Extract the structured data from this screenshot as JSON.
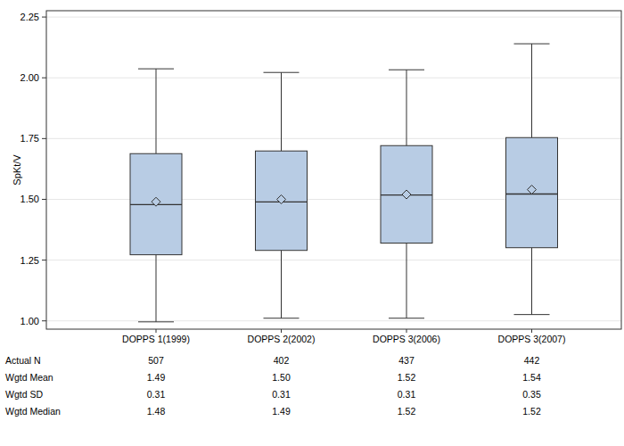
{
  "chart_data": {
    "type": "box",
    "y_label": "SpKt/V",
    "categories": [
      "DOPPS 1(1999)",
      "DOPPS 2(2002)",
      "DOPPS 3(2006)",
      "DOPPS 3(2007)"
    ],
    "boxes": [
      {
        "whisker_low": 0.996,
        "q1": 1.272,
        "median": 1.478,
        "q3": 1.688,
        "whisker_high": 2.037,
        "mean": 1.49
      },
      {
        "whisker_low": 1.011,
        "q1": 1.29,
        "median": 1.489,
        "q3": 1.699,
        "whisker_high": 2.022,
        "mean": 1.5
      },
      {
        "whisker_low": 1.011,
        "q1": 1.32,
        "median": 1.518,
        "q3": 1.721,
        "whisker_high": 2.033,
        "mean": 1.52
      },
      {
        "whisker_low": 1.026,
        "q1": 1.301,
        "median": 1.522,
        "q3": 1.754,
        "whisker_high": 2.14,
        "mean": 1.54
      }
    ],
    "color": "#b8cce4",
    "ylim": [
      0.966,
      2.276
    ],
    "yticks": [
      {
        "value": 1,
        "label": "1.00"
      },
      {
        "value": 1.25,
        "label": "1.25"
      },
      {
        "value": 1.5,
        "label": "1.50"
      },
      {
        "value": 1.75,
        "label": "1.75"
      },
      {
        "value": 2,
        "label": "2.00"
      },
      {
        "value": 2.25,
        "label": "2.25"
      }
    ],
    "grid": true,
    "table": [
      {
        "label": "Actual N",
        "values": [
          507,
          402,
          437,
          442
        ]
      },
      {
        "label": "Wgtd Mean",
        "values": [
          1.49,
          1.5,
          1.52,
          1.54
        ],
        "value_labels": [
          "1.49",
          "1.50",
          "1.52",
          "1.54"
        ]
      },
      {
        "label": "Wgtd SD",
        "values": [
          0.31,
          0.31,
          0.31,
          0.35
        ],
        "value_labels": [
          "0.31",
          "0.31",
          "0.31",
          "0.35"
        ]
      },
      {
        "label": "Wgtd Median",
        "values": [
          1.48,
          1.49,
          1.52,
          1.52
        ],
        "value_labels": [
          "1.48",
          "1.49",
          "1.52",
          "1.52"
        ]
      }
    ]
  }
}
